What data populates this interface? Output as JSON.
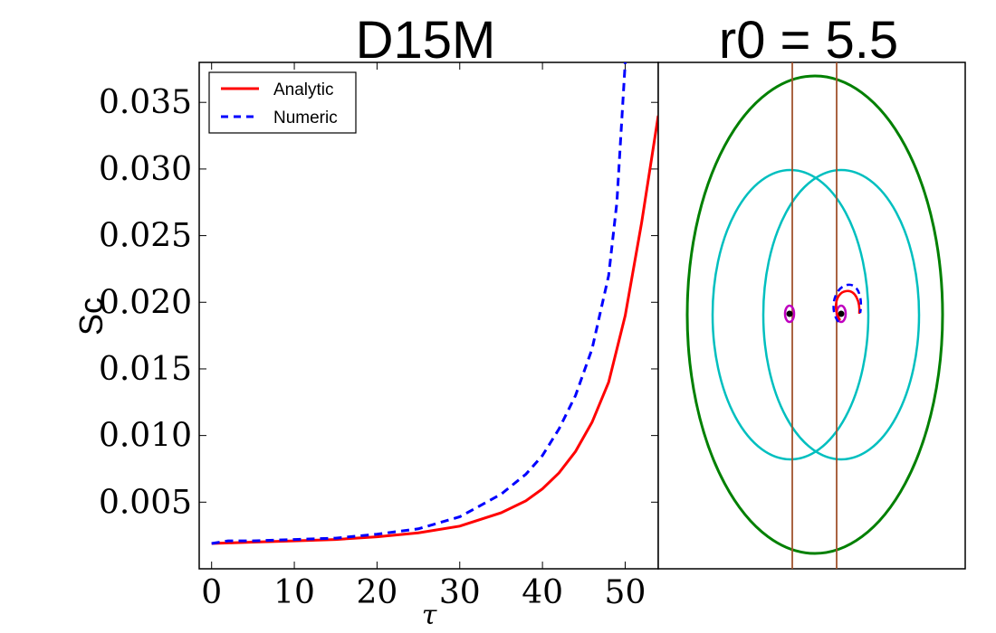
{
  "chart_data": [
    {
      "type": "line",
      "title": "D15M",
      "xlabel": "τ",
      "ylabel": "Sc",
      "xlim": [
        -1.5,
        54
      ],
      "ylim": [
        0.0,
        0.038
      ],
      "xticks": [
        0,
        10,
        20,
        30,
        40,
        50
      ],
      "yticks": [
        0.005,
        0.01,
        0.015,
        0.02,
        0.025,
        0.03,
        0.035
      ],
      "ytick_labels": [
        "0.005",
        "0.010",
        "0.015",
        "0.020",
        "0.025",
        "0.030",
        "0.035"
      ],
      "legend": {
        "position": "top-left"
      },
      "series": [
        {
          "name": "Analytic",
          "color": "#ff0000",
          "style": "solid",
          "x": [
            0,
            5,
            10,
            15,
            20,
            25,
            30,
            35,
            38,
            40,
            42,
            44,
            46,
            48,
            50,
            52,
            54
          ],
          "y": [
            0.0019,
            0.002,
            0.0021,
            0.0022,
            0.0024,
            0.0027,
            0.0032,
            0.0042,
            0.0051,
            0.006,
            0.0072,
            0.0088,
            0.011,
            0.014,
            0.019,
            0.026,
            0.034
          ]
        },
        {
          "name": "Numeric",
          "color": "#0000ff",
          "style": "dashed",
          "x": [
            0,
            2,
            5,
            10,
            15,
            20,
            25,
            30,
            35,
            38,
            40,
            42,
            44,
            46,
            48,
            49,
            50
          ],
          "y": [
            0.0019,
            0.0021,
            0.0021,
            0.0022,
            0.0023,
            0.0026,
            0.003,
            0.0039,
            0.0056,
            0.0071,
            0.0085,
            0.0105,
            0.013,
            0.0165,
            0.022,
            0.0275,
            0.038
          ]
        }
      ]
    },
    {
      "type": "diagram",
      "title": "r0 = 5.5",
      "elements": [
        {
          "name": "outer-ellipse",
          "color": "#008000"
        },
        {
          "name": "left-ellipse",
          "color": "#00bfbf"
        },
        {
          "name": "right-ellipse",
          "color": "#00bfbf"
        },
        {
          "name": "left-vertical-line",
          "color": "#a0522d"
        },
        {
          "name": "right-vertical-line",
          "color": "#a0522d"
        },
        {
          "name": "left-point",
          "color": "#000000",
          "ring_color": "#bf00bf"
        },
        {
          "name": "right-point",
          "color": "#000000",
          "ring_color": "#bf00bf"
        },
        {
          "name": "analytic-orbit-arc",
          "color": "#ff0000"
        },
        {
          "name": "numeric-orbit-arc",
          "color": "#0000ff"
        }
      ]
    }
  ]
}
